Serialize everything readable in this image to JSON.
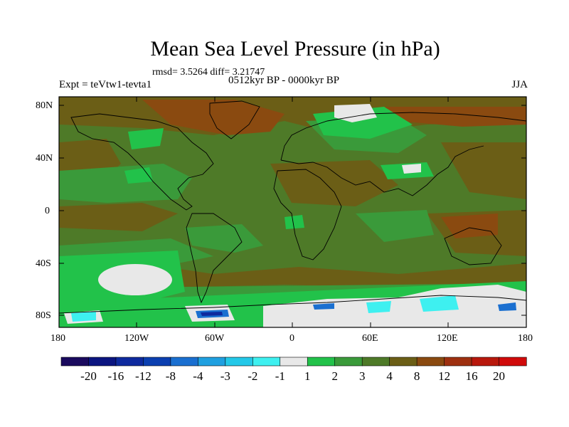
{
  "title": "Mean Sea Level Pressure (in hPa)",
  "stats": "rmsd= 3.5264  diff= 3.21747",
  "experiment": "Expt = teVtw1-tevta1",
  "period": "0512kyr BP - 0000kyr BP",
  "season": "JJA",
  "y_tick_labels": [
    "80N",
    "40N",
    "0",
    "40S",
    "80S"
  ],
  "x_tick_labels": [
    "180",
    "120W",
    "60W",
    "0",
    "60E",
    "120E",
    "180"
  ],
  "colorbar": {
    "labels": [
      "-20",
      "-16",
      "-12",
      "-8",
      "-4",
      "-3",
      "-2",
      "-1",
      "1",
      "2",
      "3",
      "4",
      "8",
      "12",
      "16",
      "20"
    ],
    "colors": [
      "#1a0a5e",
      "#0b1580",
      "#0e2a9e",
      "#0b3fb0",
      "#1a6fd0",
      "#1fa0e0",
      "#23c8e8",
      "#3ef0f0",
      "#e8e8e8",
      "#22c24a",
      "#3a9a3a",
      "#4e7a28",
      "#6b5e16",
      "#8a4a10",
      "#9e3010",
      "#b8180c",
      "#d00a0a"
    ]
  },
  "fill_colors": {
    "white": "#e8e8e8",
    "light_green": "#22c24a",
    "green": "#3a9a3a",
    "olive": "#4e7a28",
    "brown": "#6b5e16",
    "rust": "#8a4a10",
    "cyan": "#3ef0f0",
    "blue": "#1a6fd0",
    "dark_blue": "#0e2a9e"
  }
}
